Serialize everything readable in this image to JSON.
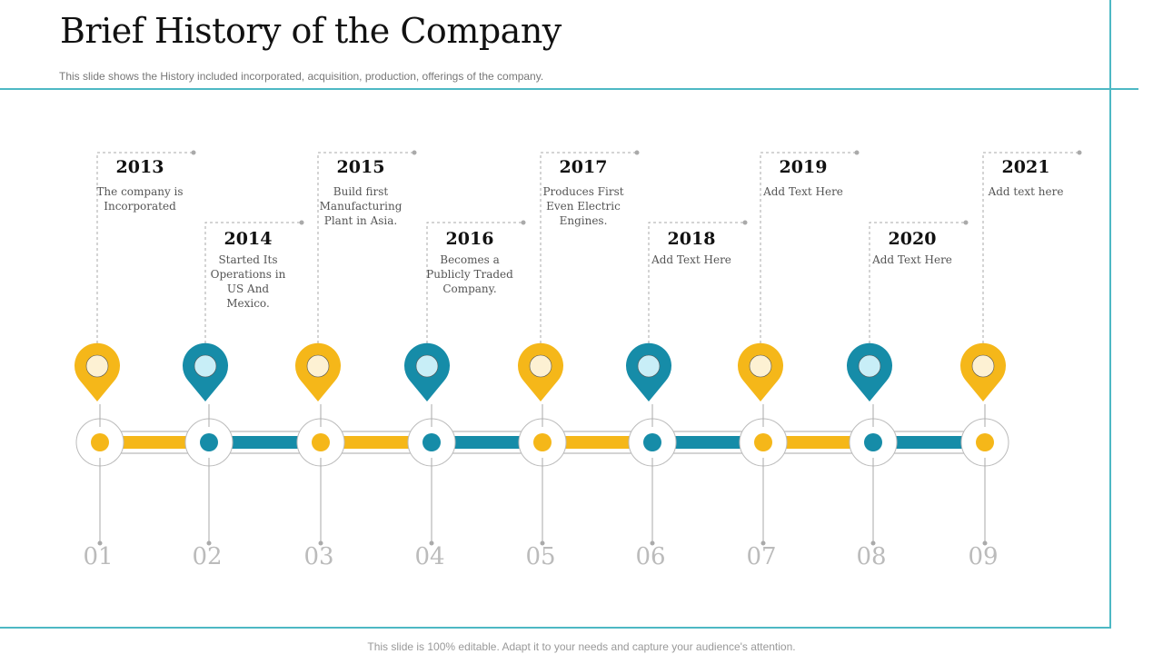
{
  "header": {
    "title": "Brief History of the Company",
    "subtitle": "This slide shows the History included incorporated, acquisition, production, offerings  of the company."
  },
  "footer": "This slide is 100% editable. Adapt it to your needs and capture your audience's attention.",
  "colors": {
    "yellow": "#F5B719",
    "teal": "#168CA8",
    "frame": "#4DB8C4"
  },
  "timeline": [
    {
      "year": "2013",
      "text": "The company is Incorporated",
      "number": "01",
      "color": "yellow"
    },
    {
      "year": "2014",
      "text": "Started Its Operations in US And Mexico.",
      "number": "02",
      "color": "teal"
    },
    {
      "year": "2015",
      "text": "Build first Manufacturing Plant in Asia.",
      "number": "03",
      "color": "yellow"
    },
    {
      "year": "2016",
      "text": "Becomes a Publicly Traded Company.",
      "number": "04",
      "color": "teal"
    },
    {
      "year": "2017",
      "text": "Produces First Even Electric Engines.",
      "number": "05",
      "color": "yellow"
    },
    {
      "year": "2018",
      "text": "Add Text Here",
      "number": "06",
      "color": "teal"
    },
    {
      "year": "2019",
      "text": "Add Text Here",
      "number": "07",
      "color": "yellow"
    },
    {
      "year": "2020",
      "text": "Add Text Here",
      "number": "08",
      "color": "teal"
    },
    {
      "year": "2021",
      "text": "Add text here",
      "number": "09",
      "color": "yellow"
    }
  ]
}
